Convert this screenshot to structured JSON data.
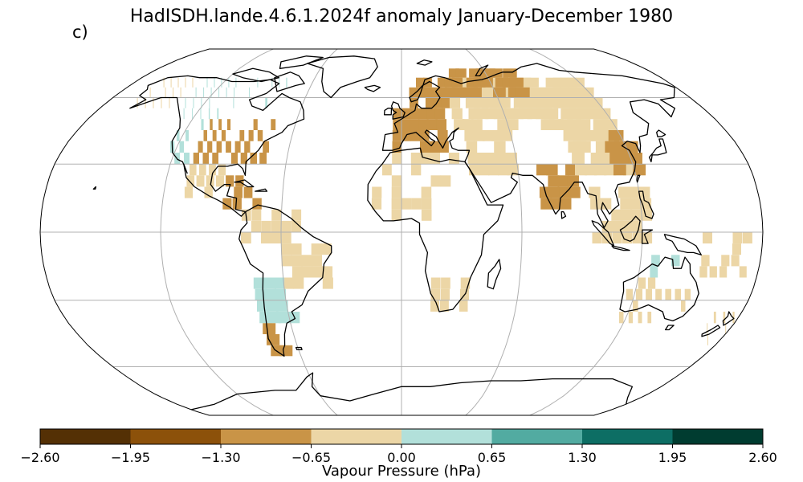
{
  "title": "HadISDH.lande.4.6.1.2024f anomaly January-December 1980",
  "panel_label": "c)",
  "map": {
    "projection": "Robinson",
    "graticule": {
      "lon_step": 60,
      "lat_step": 30
    },
    "coastlines": true
  },
  "colorbar": {
    "label": "Vapour Pressure (hPa)",
    "ticks": [
      "−2.60",
      "−1.95",
      "−1.30",
      "−0.65",
      "0.00",
      "0.65",
      "1.30",
      "1.95",
      "2.60"
    ],
    "colors": [
      "#543005",
      "#8c510a",
      "#c99447",
      "#ecd6a6",
      "#b2e0da",
      "#52aba1",
      "#0d6e64",
      "#003c30"
    ]
  },
  "anomaly_regions": [
    {
      "name": "alaska",
      "color": "#ecd6a6",
      "density": 0.85
    },
    {
      "name": "western-canada",
      "color": "#b2e0da",
      "density": 0.8
    },
    {
      "name": "northern-canada",
      "color": "#b2e0da",
      "density": 0.5
    },
    {
      "name": "western-us",
      "color": "#b2e0da",
      "density": 0.85
    },
    {
      "name": "central-us",
      "color": "#c99447",
      "density": 0.85
    },
    {
      "name": "eastern-us",
      "color": "#c99447",
      "density": 0.85
    },
    {
      "name": "mexico",
      "color": "#ecd6a6",
      "density": 0.85
    },
    {
      "name": "caribbean",
      "color": "#c99447",
      "density": 0.5
    },
    {
      "name": "south-america-north",
      "color": "#ecd6a6",
      "density": 0.6
    },
    {
      "name": "brazil",
      "color": "#ecd6a6",
      "density": 0.75
    },
    {
      "name": "southern-south-america",
      "color": "#b2e0da",
      "density": 0.8
    },
    {
      "name": "patagonia",
      "color": "#c99447",
      "density": 0.6
    },
    {
      "name": "europe",
      "color": "#c99447",
      "density": 0.9
    },
    {
      "name": "scandinavia",
      "color": "#c99447",
      "density": 0.8
    },
    {
      "name": "russia",
      "color": "#ecd6a6",
      "density": 0.85
    },
    {
      "name": "northern-russia",
      "color": "#c99447",
      "density": 0.7
    },
    {
      "name": "middle-east",
      "color": "#ecd6a6",
      "density": 0.8
    },
    {
      "name": "north-africa",
      "color": "#ecd6a6",
      "density": 0.6
    },
    {
      "name": "west-africa",
      "color": "#ecd6a6",
      "density": 0.65
    },
    {
      "name": "southern-africa",
      "color": "#ecd6a6",
      "density": 0.75
    },
    {
      "name": "india",
      "color": "#c99447",
      "density": 0.85
    },
    {
      "name": "china",
      "color": "#ecd6a6",
      "density": 0.85
    },
    {
      "name": "east-china",
      "color": "#c99447",
      "density": 0.8
    },
    {
      "name": "southeast-asia",
      "color": "#ecd6a6",
      "density": 0.6
    },
    {
      "name": "australia",
      "color": "#ecd6a6",
      "density": 0.55
    },
    {
      "name": "north-australia",
      "color": "#b2e0da",
      "density": 0.55
    },
    {
      "name": "new-zealand",
      "color": "#ecd6a6",
      "density": 0.6
    },
    {
      "name": "pacific-islands",
      "color": "#ecd6a6",
      "density": 0.5
    }
  ]
}
